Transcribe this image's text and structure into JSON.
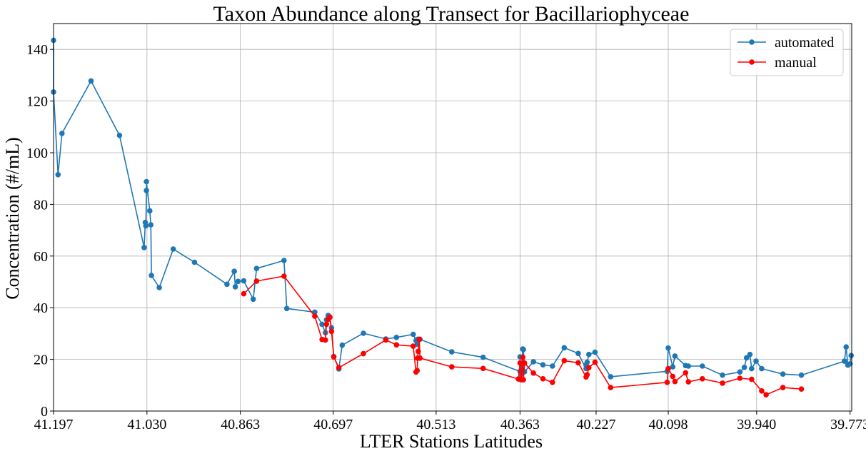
{
  "chart_data": {
    "type": "line",
    "title": "Taxon Abundance along Transect for Bacillariophyceae",
    "xlabel": "LTER Stations Latitudes",
    "ylabel": "Concentration (#/mL)",
    "x_reversed": true,
    "xlim": [
      41.197,
      39.77
    ],
    "ylim": [
      0,
      150
    ],
    "x_ticks": [
      41.197,
      41.03,
      40.863,
      40.697,
      40.513,
      40.363,
      40.227,
      40.098,
      39.94,
      39.773
    ],
    "x_tick_labels": [
      "41.197",
      "41.030",
      "40.863",
      "40.697",
      "40.513",
      "40.363",
      "40.227",
      "40.098",
      "39.940",
      "39.773"
    ],
    "y_ticks": [
      0,
      20,
      40,
      60,
      80,
      100,
      120,
      140
    ],
    "y_tick_labels": [
      "0",
      "20",
      "40",
      "60",
      "80",
      "100",
      "120",
      "140"
    ],
    "grid": true,
    "legend_position": "top-right",
    "series": [
      {
        "name": "automated",
        "color": "#1f77b4",
        "marker": "circle",
        "x": [
          41.197,
          41.197,
          41.189,
          41.182,
          41.13,
          41.079,
          41.035,
          41.033,
          41.032,
          41.031,
          41.031,
          41.025,
          41.023,
          41.022,
          41.008,
          40.983,
          40.945,
          40.887,
          40.874,
          40.872,
          40.867,
          40.857,
          40.84,
          40.834,
          40.785,
          40.78,
          40.73,
          40.717,
          40.711,
          40.709,
          40.706,
          40.703,
          40.7,
          40.696,
          40.687,
          40.681,
          40.643,
          40.603,
          40.584,
          40.554,
          40.549,
          40.547,
          40.546,
          40.542,
          40.485,
          40.429,
          40.363,
          40.363,
          40.361,
          40.358,
          40.357,
          40.355,
          40.339,
          40.322,
          40.305,
          40.284,
          40.259,
          40.245,
          40.245,
          40.243,
          40.24,
          40.229,
          40.201,
          40.1,
          40.098,
          40.09,
          40.086,
          40.067,
          40.062,
          40.037,
          40.001,
          39.97,
          39.962,
          39.958,
          39.952,
          39.949,
          39.941,
          39.931,
          39.893,
          39.86,
          39.783,
          39.78,
          39.777,
          39.773,
          39.771
        ],
        "y": [
          143.5,
          123.5,
          91.5,
          107.5,
          127.8,
          106.7,
          63.3,
          73,
          71.7,
          85.4,
          88.8,
          77.5,
          72.1,
          52.5,
          47.8,
          62.7,
          57.6,
          49.1,
          54.1,
          48.1,
          50.2,
          50.4,
          43.3,
          55.2,
          58.3,
          39.7,
          38.3,
          33.6,
          30.3,
          35.3,
          37,
          36.2,
          32.2,
          21.1,
          16.3,
          25.5,
          30.1,
          27.9,
          28.5,
          29.7,
          27.3,
          25.9,
          27.8,
          27.8,
          22.9,
          20.8,
          15.3,
          21,
          14.2,
          24,
          23.8,
          15.2,
          19.1,
          17.9,
          17.4,
          24.5,
          22.3,
          16.4,
          17.8,
          18.9,
          21.9,
          22.8,
          13.3,
          15.4,
          24.4,
          17.1,
          21.3,
          17.6,
          17.4,
          17.4,
          13.9,
          15.1,
          16.9,
          20.6,
          21.9,
          16.4,
          19.3,
          16.4,
          14.3,
          13.9,
          19.3,
          24.8,
          17.8,
          18.3,
          21.5
        ]
      },
      {
        "name": "manual",
        "color": "#ff0000",
        "marker": "circle",
        "x": [
          40.857,
          40.834,
          40.785,
          40.73,
          40.717,
          40.711,
          40.709,
          40.706,
          40.703,
          40.7,
          40.696,
          40.687,
          40.643,
          40.603,
          40.584,
          40.554,
          40.549,
          40.547,
          40.546,
          40.545,
          40.543,
          40.542,
          40.485,
          40.429,
          40.366,
          40.363,
          40.361,
          40.358,
          40.357,
          40.355,
          40.339,
          40.322,
          40.305,
          40.284,
          40.259,
          40.245,
          40.243,
          40.24,
          40.229,
          40.201,
          40.1,
          40.098,
          40.09,
          40.086,
          40.067,
          40.062,
          40.037,
          40.001,
          39.97,
          39.949,
          39.931,
          39.923,
          39.893,
          39.86
        ],
        "y": [
          45.4,
          50.3,
          52.2,
          36.7,
          27.7,
          27.5,
          33.6,
          35.5,
          36.4,
          30.8,
          20.9,
          16.8,
          22.2,
          27.5,
          25.6,
          25.1,
          15.1,
          15.7,
          20.5,
          23.1,
          27.8,
          20.5,
          17.1,
          16.5,
          12.4,
          18.6,
          12.1,
          20.8,
          12.1,
          18.6,
          14.7,
          12.5,
          11.1,
          19.5,
          18.7,
          13.2,
          14.1,
          16.8,
          18.9,
          9.1,
          11.1,
          16.4,
          13.4,
          11.4,
          14.8,
          11.3,
          12.5,
          10.8,
          12.7,
          12.3,
          7.8,
          6.3,
          9.1,
          8.5
        ]
      }
    ]
  }
}
